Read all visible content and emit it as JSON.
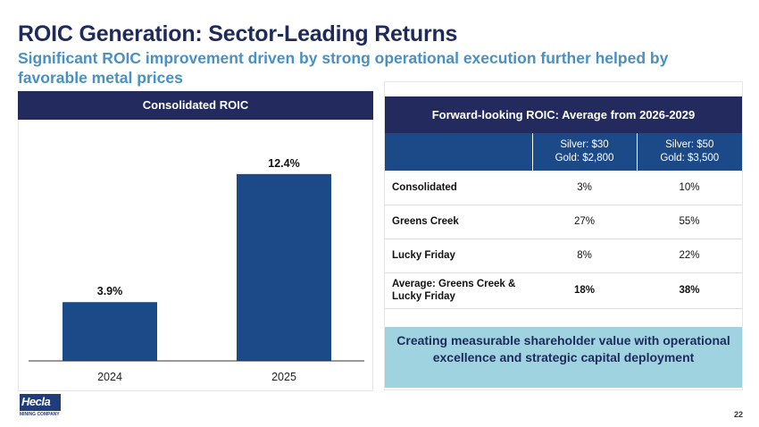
{
  "slide": {
    "title": "ROIC Generation: Sector-Leading Returns",
    "subtitle": "Significant ROIC improvement driven by strong operational execution further helped by favorable metal prices",
    "page_number": "22"
  },
  "left_panel": {
    "header": "Consolidated ROIC"
  },
  "chart_data": {
    "type": "bar",
    "title": "Consolidated ROIC",
    "categories": [
      "2024",
      "2025"
    ],
    "values": [
      3.9,
      12.4
    ],
    "data_labels": [
      "3.9%",
      "12.4%"
    ],
    "ylim": [
      0,
      14
    ],
    "color": "#1c4a88",
    "grid": false
  },
  "right_panel": {
    "header": "Forward-looking ROIC: Average from 2026-2029",
    "columns": [
      "",
      "Silver: $30\nGold: $2,800",
      "Silver: $50\nGold: $3,500"
    ],
    "rows": [
      {
        "label": "Consolidated",
        "values": [
          "3%",
          "10%"
        ]
      },
      {
        "label": "Greens Creek",
        "values": [
          "27%",
          "55%"
        ]
      },
      {
        "label": "Lucky Friday",
        "values": [
          "8%",
          "22%"
        ]
      },
      {
        "label": "Average: Greens Creek & Lucky Friday",
        "values": [
          "18%",
          "38%"
        ]
      }
    ],
    "callout": "Creating measurable shareholder value with operational excellence and strategic capital deployment"
  },
  "logo": {
    "name": "Hecla",
    "tagline": "MINING COMPANY"
  },
  "colors": {
    "navy": "#232b5e",
    "bar_blue": "#1c4a88",
    "subtitle_blue": "#4a90c2",
    "callout_bg": "#9fd3e0"
  }
}
